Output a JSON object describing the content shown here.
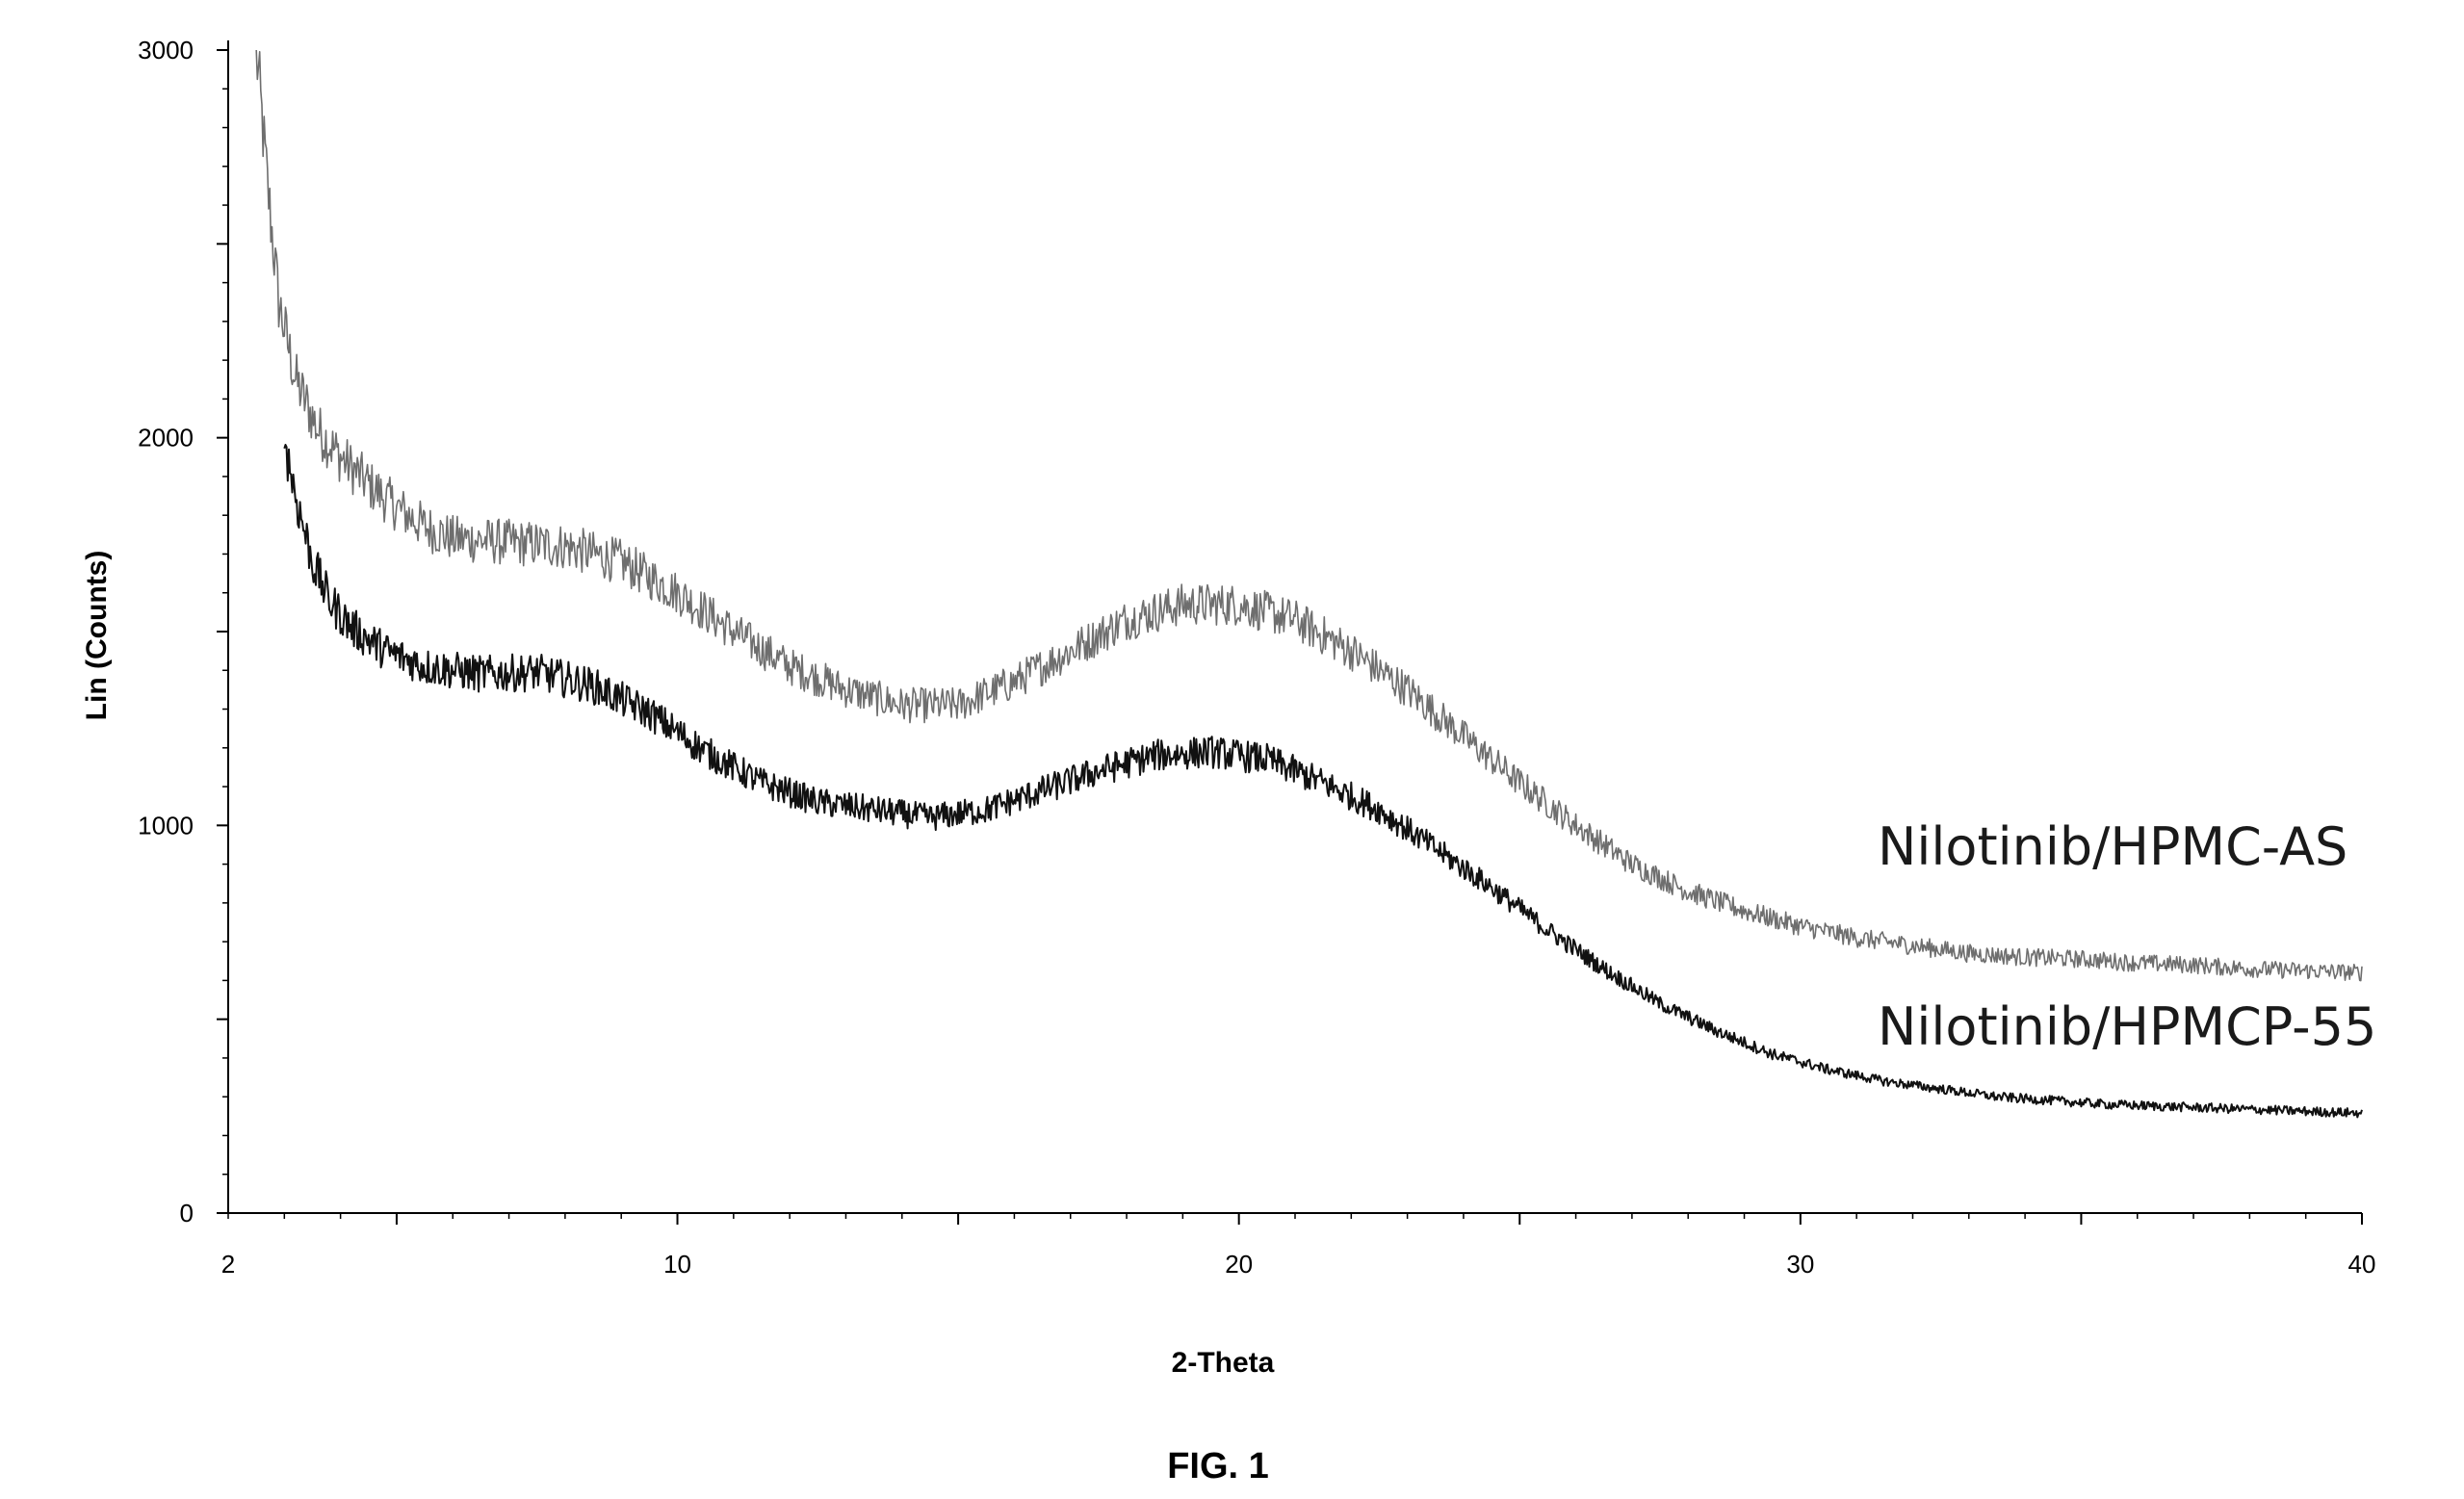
{
  "figure": {
    "caption": "FIG. 1"
  },
  "chart_data": {
    "type": "line",
    "xlabel": "2-Theta",
    "ylabel": "Lin (Counts)",
    "xlim": [
      2,
      40
    ],
    "ylim": [
      0,
      3000
    ],
    "x_ticks": [
      2,
      10,
      20,
      30,
      40
    ],
    "y_ticks": [
      0,
      1000,
      2000,
      3000
    ],
    "grid": false,
    "legend": "inline labels on right",
    "series": [
      {
        "name": "Nilotinib/HPMC-AS",
        "color": "#6e6e6e",
        "points": [
          [
            2.5,
            3000
          ],
          [
            2.7,
            2650
          ],
          [
            2.9,
            2350
          ],
          [
            3.2,
            2150
          ],
          [
            3.6,
            2020
          ],
          [
            4.0,
            1950
          ],
          [
            4.5,
            1880
          ],
          [
            5.0,
            1820
          ],
          [
            5.5,
            1770
          ],
          [
            6.0,
            1740
          ],
          [
            7.0,
            1730
          ],
          [
            8.0,
            1720
          ],
          [
            9.0,
            1680
          ],
          [
            10.0,
            1600
          ],
          [
            11.0,
            1500
          ],
          [
            12.0,
            1410
          ],
          [
            13.0,
            1350
          ],
          [
            14.0,
            1310
          ],
          [
            15.0,
            1310
          ],
          [
            16.0,
            1370
          ],
          [
            17.0,
            1450
          ],
          [
            18.0,
            1530
          ],
          [
            19.0,
            1570
          ],
          [
            20.0,
            1570
          ],
          [
            21.0,
            1530
          ],
          [
            22.0,
            1450
          ],
          [
            23.0,
            1350
          ],
          [
            24.0,
            1230
          ],
          [
            25.0,
            1110
          ],
          [
            26.0,
            1000
          ],
          [
            27.0,
            900
          ],
          [
            28.0,
            830
          ],
          [
            29.0,
            780
          ],
          [
            30.0,
            740
          ],
          [
            31.0,
            710
          ],
          [
            32.0,
            690
          ],
          [
            33.0,
            670
          ],
          [
            34.0,
            660
          ],
          [
            35.0,
            655
          ],
          [
            36.0,
            645
          ],
          [
            37.0,
            640
          ],
          [
            38.0,
            630
          ],
          [
            39.0,
            625
          ],
          [
            40.0,
            620
          ]
        ]
      },
      {
        "name": "Nilotinib/HPMCP-55",
        "color": "#111111",
        "points": [
          [
            3.0,
            2000
          ],
          [
            3.2,
            1850
          ],
          [
            3.5,
            1680
          ],
          [
            3.8,
            1580
          ],
          [
            4.2,
            1510
          ],
          [
            4.8,
            1450
          ],
          [
            5.5,
            1410
          ],
          [
            6.5,
            1390
          ],
          [
            7.5,
            1395
          ],
          [
            8.5,
            1360
          ],
          [
            9.5,
            1290
          ],
          [
            10.5,
            1190
          ],
          [
            11.5,
            1110
          ],
          [
            12.5,
            1060
          ],
          [
            13.5,
            1040
          ],
          [
            14.5,
            1020
          ],
          [
            15.5,
            1040
          ],
          [
            16.5,
            1090
          ],
          [
            17.5,
            1140
          ],
          [
            18.5,
            1180
          ],
          [
            19.5,
            1190
          ],
          [
            20.5,
            1170
          ],
          [
            21.5,
            1110
          ],
          [
            22.5,
            1040
          ],
          [
            23.5,
            940
          ],
          [
            24.5,
            840
          ],
          [
            25.5,
            730
          ],
          [
            26.5,
            630
          ],
          [
            27.5,
            540
          ],
          [
            28.5,
            470
          ],
          [
            29.5,
            410
          ],
          [
            30.5,
            370
          ],
          [
            31.5,
            340
          ],
          [
            32.5,
            320
          ],
          [
            33.5,
            300
          ],
          [
            34.5,
            290
          ],
          [
            35.5,
            280
          ],
          [
            36.5,
            275
          ],
          [
            37.5,
            270
          ],
          [
            38.5,
            265
          ],
          [
            39.5,
            260
          ],
          [
            40.0,
            258
          ]
        ]
      }
    ]
  }
}
